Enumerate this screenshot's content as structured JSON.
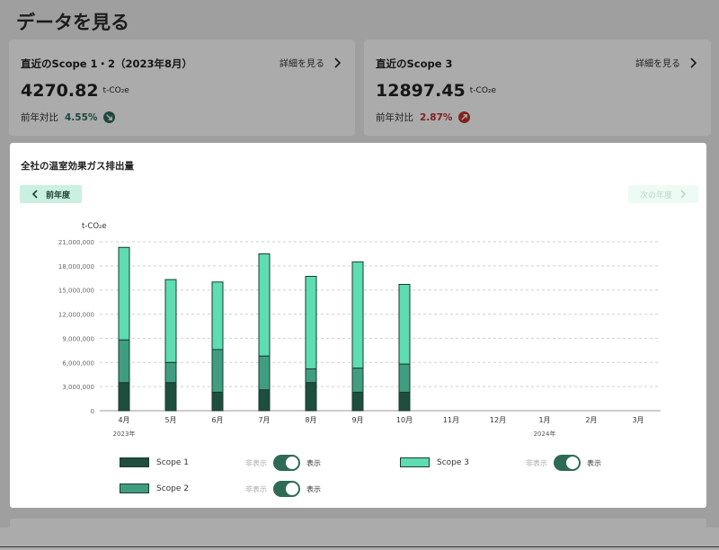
{
  "page": {
    "title": "データを見る"
  },
  "cards": [
    {
      "title": "直近のScope 1・2（2023年8月）",
      "link": "詳細を見る",
      "value": "4270.82",
      "unit": "t-CO₂e",
      "yoy_label": "前年対比",
      "yoy_pct": "4.55%",
      "trend": "down",
      "pct_color": "#2f6b58",
      "trend_color": "#2f6b58"
    },
    {
      "title": "直近のScope 3",
      "link": "詳細を見る",
      "value": "12897.45",
      "unit": "t-CO₂e",
      "yoy_label": "前年対比",
      "yoy_pct": "2.87%",
      "trend": "up",
      "pct_color": "#c0342f",
      "trend_color": "#c0342f"
    }
  ],
  "modal": {
    "title": "全社の温室効果ガス排出量",
    "prev_label": "前年度",
    "next_label": "次の年度"
  },
  "chart_data": {
    "type": "bar",
    "stacked": true,
    "unit_label": "t-CO₂e",
    "categories": [
      "4月",
      "5月",
      "6月",
      "7月",
      "8月",
      "9月",
      "10月",
      "11月",
      "12月",
      "1月",
      "2月",
      "3月"
    ],
    "year_labels": [
      {
        "category_index": 0,
        "text": "2023年"
      },
      {
        "category_index": 9,
        "text": "2024年"
      }
    ],
    "series": [
      {
        "name": "Scope 1",
        "color": "#1e4e3e",
        "values": [
          3500000,
          3500000,
          2300000,
          2600000,
          3500000,
          2300000,
          2300000,
          null,
          null,
          null,
          null,
          null
        ]
      },
      {
        "name": "Scope 2",
        "color": "#3f9e80",
        "values": [
          5300000,
          2500000,
          5300000,
          4200000,
          1700000,
          3000000,
          3500000,
          null,
          null,
          null,
          null,
          null
        ]
      },
      {
        "name": "Scope 3",
        "color": "#5edcb2",
        "values": [
          11500000,
          10300000,
          8400000,
          12700000,
          11500000,
          13200000,
          9900000,
          null,
          null,
          null,
          null,
          null
        ]
      }
    ],
    "ylim": [
      0,
      21000000
    ],
    "yticks": [
      0,
      3000000,
      6000000,
      9000000,
      12000000,
      15000000,
      18000000,
      21000000
    ],
    "ytick_labels": [
      "0",
      "3,000,000",
      "6,000,000",
      "9,000,000",
      "12,000,000",
      "15,000,000",
      "18,000,000",
      "21,000,000"
    ],
    "grid": true
  },
  "toggles": {
    "off_label": "非表示",
    "on_label": "表示"
  }
}
